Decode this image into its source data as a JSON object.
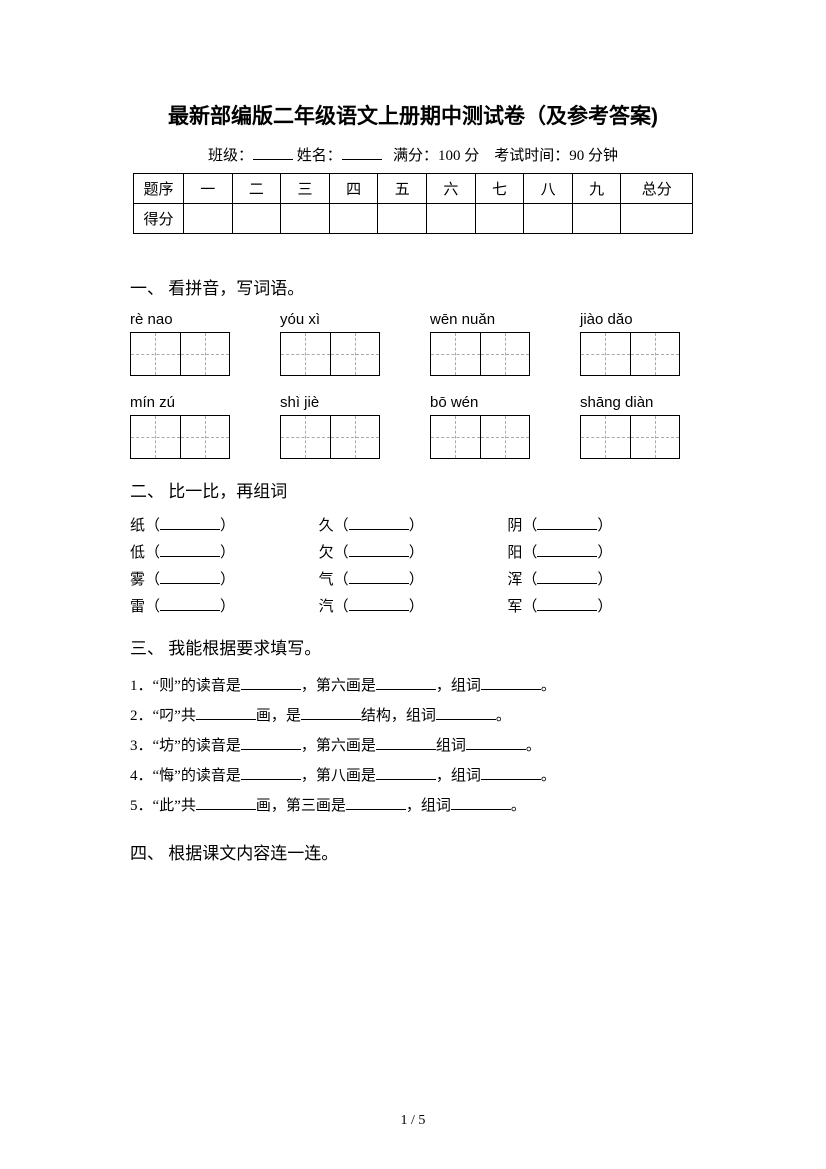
{
  "title": "最新部编版二年级语文上册期中测试卷（及参考答案)",
  "subtitle": {
    "class_label": "班级：",
    "name_label": "姓名：",
    "full_score": "满分：100 分",
    "time": "考试时间：90 分钟"
  },
  "score_table": {
    "row1": [
      "题序",
      "一",
      "二",
      "三",
      "四",
      "五",
      "六",
      "七",
      "八",
      "九",
      "总分"
    ],
    "row2_label": "得分"
  },
  "sections": {
    "s1": {
      "title": "一、 看拼音，写词语。",
      "row1": [
        "rè    nao",
        "yóu   xì",
        "wēn nuǎn",
        "jiào dǎo"
      ],
      "row2": [
        "mín  zú",
        "shì   jiè",
        "bō  wén",
        "shāng diàn"
      ]
    },
    "s2": {
      "title": "二、 比一比，再组词",
      "pairs": [
        [
          "纸",
          "久",
          "阴"
        ],
        [
          "低",
          "欠",
          "阳"
        ],
        [
          "雾",
          "气",
          "浑"
        ],
        [
          "雷",
          "汽",
          "军"
        ]
      ]
    },
    "s3": {
      "title": "三、 我能根据要求填写。",
      "items": [
        {
          "n": "1．",
          "a": "“则”的读音是",
          "b": "，第六画是",
          "c": "，组词",
          "d": "。"
        },
        {
          "n": "2．",
          "a": "“叼”共",
          "b": "画，是",
          "c": "结构，组词",
          "d": "。"
        },
        {
          "n": "3．",
          "a": "“坊”的读音是",
          "b": "，第六画是",
          "c": "组词",
          "d": "。"
        },
        {
          "n": "4．",
          "a": "“悔”的读音是",
          "b": "，第八画是",
          "c": "，组词",
          "d": "。"
        },
        {
          "n": "5．",
          "a": "“此”共",
          "b": "画，第三画是",
          "c": "，组词",
          "d": "。"
        }
      ]
    },
    "s4": {
      "title": "四、 根据课文内容连一连。"
    }
  },
  "page_number": "1 / 5",
  "colors": {
    "text": "#000000",
    "bg": "#ffffff",
    "dash": "#aaaaaa"
  }
}
